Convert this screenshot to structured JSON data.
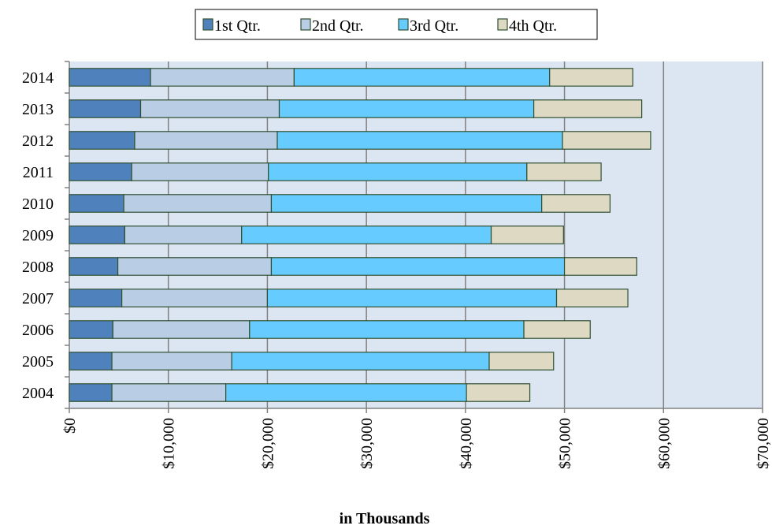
{
  "chart_data": {
    "type": "bar",
    "orientation": "horizontal",
    "stacked": true,
    "categories": [
      "2004",
      "2005",
      "2006",
      "2007",
      "2008",
      "2009",
      "2010",
      "2011",
      "2012",
      "2013",
      "2014"
    ],
    "series": [
      {
        "name": "1st Qtr.",
        "color": "#4f81bd",
        "values": [
          4300,
          4300,
          4400,
          5300,
          4900,
          5600,
          5500,
          6300,
          6600,
          7200,
          8200
        ]
      },
      {
        "name": "2nd Qtr.",
        "color": "#b9cde5",
        "values": [
          11500,
          12100,
          13800,
          14700,
          15500,
          11800,
          14900,
          13800,
          14400,
          14000,
          14500
        ]
      },
      {
        "name": "3rd Qtr.",
        "color": "#66ccff",
        "values": [
          24300,
          26000,
          27700,
          29200,
          29600,
          25200,
          27300,
          26100,
          28800,
          25700,
          25800
        ]
      },
      {
        "name": "4th Qtr.",
        "color": "#ddd9c3",
        "values": [
          6400,
          6500,
          6700,
          7200,
          7300,
          7300,
          6900,
          7500,
          8900,
          10900,
          8400
        ]
      }
    ],
    "xlim": [
      0,
      70000
    ],
    "x_ticks": [
      "$0",
      "$10,000",
      "$20,000",
      "$30,000",
      "$40,000",
      "$50,000",
      "$60,000",
      "$70,000"
    ],
    "xlabel": "in Thousands",
    "legend_position": "top",
    "grid": true,
    "plot_background": "#dce6f2"
  }
}
